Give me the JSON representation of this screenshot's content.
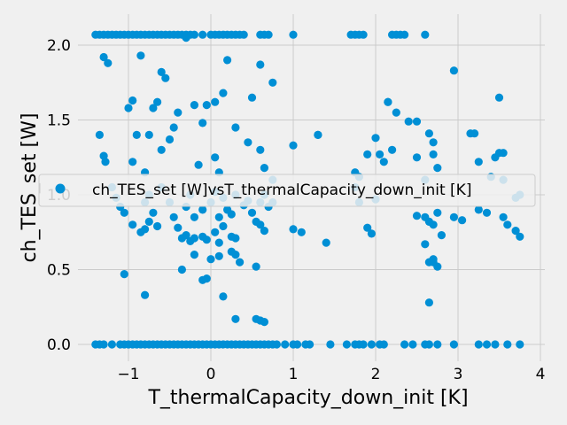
{
  "chart_data": {
    "type": "scatter",
    "xlabel": "T_thermalCapacity_down_init [K]",
    "ylabel": "ch_TES_set [W]",
    "xlim": [
      -1.55,
      3.95
    ],
    "ylim": [
      -0.1,
      2.18
    ],
    "x_ticks": [
      -1,
      0,
      1,
      2,
      3,
      4
    ],
    "x_tick_labels": [
      "−1",
      "0",
      "1",
      "2",
      "3",
      "4"
    ],
    "y_ticks": [
      0.0,
      0.5,
      1.0,
      1.5,
      2.0
    ],
    "y_tick_labels": [
      "0.0",
      "0.5",
      "1.0",
      "1.5",
      "2.0"
    ],
    "grid": true,
    "legend_position": "center",
    "marker_color": "#008fd5",
    "series": [
      {
        "name": "ch_TES_set [W]vsT_thermalCapacity_down_init [K]",
        "color": "#008fd5",
        "x": [
          -1.4,
          -1.35,
          -1.3,
          -1.25,
          -1.2,
          -1.15,
          -1.1,
          -1.05,
          -1.0,
          -0.95,
          -0.9,
          -0.85,
          -0.8,
          -0.75,
          -0.7,
          -0.65,
          -0.6,
          -0.55,
          -0.5,
          -0.45,
          -0.4,
          -0.35,
          -0.3,
          -0.25,
          -0.2,
          -0.1,
          0.0,
          0.05,
          0.1,
          0.15,
          0.2,
          0.25,
          0.3,
          0.35,
          0.4,
          0.6,
          0.65,
          0.7,
          1.0,
          1.7,
          1.75,
          1.8,
          1.85,
          2.2,
          2.25,
          2.3,
          2.35,
          2.6,
          -1.3,
          -1.25,
          -0.95,
          -0.85,
          -0.6,
          -0.55,
          -0.3,
          -0.05,
          0.05,
          0.15,
          0.2,
          0.5,
          0.6,
          0.75,
          1.3,
          2.05,
          2.15,
          2.25,
          2.5,
          2.7,
          2.95,
          3.2,
          3.25,
          3.4,
          3.45,
          3.5,
          3.55,
          3.7,
          3.75,
          -1.4,
          -1.35,
          -1.3,
          -1.2,
          -1.1,
          -1.05,
          -1.0,
          -0.95,
          -0.9,
          -0.85,
          -0.8,
          -0.75,
          -0.7,
          -0.65,
          -0.6,
          -0.55,
          -0.5,
          -0.45,
          -0.4,
          -0.35,
          -0.3,
          -0.25,
          -0.2,
          -0.15,
          -0.1,
          -0.05,
          0.0,
          0.05,
          0.1,
          0.15,
          0.2,
          0.25,
          0.3,
          0.35,
          0.4,
          0.45,
          0.5,
          0.55,
          0.6,
          0.65,
          0.7,
          0.75,
          0.8,
          0.9,
          1.0,
          1.05,
          1.15,
          1.2,
          1.45,
          1.65,
          1.75,
          1.8,
          1.85,
          1.95,
          2.05,
          2.1,
          2.35,
          2.45,
          2.6,
          2.65,
          2.75,
          2.95,
          3.25,
          3.35,
          3.45,
          3.6,
          3.75,
          -1.35,
          -1.3,
          -1.28,
          -1.0,
          -0.9,
          -0.95,
          -0.8,
          -0.75,
          -0.7,
          -0.65,
          -0.6,
          -0.5,
          -0.45,
          -0.4,
          -0.2,
          -0.15,
          -0.1,
          0.05,
          0.1,
          0.3,
          0.45,
          0.6,
          0.65,
          0.75,
          1.0,
          1.3,
          1.75,
          1.8,
          1.9,
          2.0,
          2.1,
          2.15,
          2.2,
          2.4,
          2.5,
          2.6,
          2.65,
          2.7,
          2.75,
          3.15,
          3.5,
          3.55,
          -1.2,
          -1.15,
          -1.1,
          -1.05,
          -0.95,
          -0.85,
          -0.8,
          -0.75,
          -0.7,
          -0.6,
          -0.5,
          -0.45,
          -0.4,
          -0.3,
          -0.25,
          -0.2,
          -0.1,
          0.0,
          0.05,
          0.1,
          0.15,
          0.2,
          0.25,
          0.3,
          0.4,
          0.45,
          0.5,
          0.55,
          0.6,
          0.65,
          0.7,
          0.75,
          1.8,
          1.9,
          2.0,
          1.75,
          2.5,
          2.6,
          2.65,
          2.7,
          2.75,
          2.8,
          2.95,
          3.05,
          3.25,
          3.35,
          3.55,
          3.6,
          3.7,
          3.75,
          -0.8,
          -0.75,
          -0.65,
          -0.35,
          -0.3,
          -0.25,
          -0.2,
          -0.1,
          -0.05,
          0.05,
          0.1,
          0.15,
          0.25,
          0.3,
          0.6,
          0.65,
          1.0,
          1.1,
          1.4,
          1.95,
          2.6,
          2.7,
          -0.35,
          -0.2,
          -0.1,
          0.0,
          0.1,
          0.25,
          0.3,
          0.35,
          0.55,
          2.65,
          2.7,
          2.75,
          -1.05,
          -0.8,
          -0.05,
          0.15,
          0.3,
          0.55,
          0.6,
          0.65,
          2.65
        ],
        "y": [
          2.07,
          2.07,
          2.07,
          2.07,
          2.07,
          2.07,
          2.07,
          2.07,
          2.07,
          2.07,
          2.07,
          2.07,
          2.07,
          2.07,
          2.07,
          2.07,
          2.07,
          2.07,
          2.07,
          2.07,
          2.07,
          2.07,
          2.07,
          2.07,
          2.07,
          2.07,
          2.07,
          2.07,
          2.07,
          2.07,
          2.07,
          2.07,
          2.07,
          2.07,
          2.07,
          2.07,
          2.07,
          2.07,
          2.07,
          2.07,
          2.07,
          2.07,
          2.07,
          2.07,
          2.07,
          2.07,
          2.07,
          2.07,
          1.92,
          1.88,
          1.63,
          1.93,
          1.82,
          1.78,
          2.05,
          1.6,
          1.62,
          1.68,
          1.9,
          1.65,
          1.87,
          1.75,
          1.4,
          1.27,
          1.62,
          1.55,
          1.49,
          1.35,
          1.83,
          1.41,
          1.22,
          1.12,
          1.25,
          1.65,
          1.28,
          0.98,
          1.0,
          0.0,
          0.0,
          0.0,
          0.0,
          0.0,
          0.0,
          0.0,
          0.0,
          0.0,
          0.0,
          0.0,
          0.0,
          0.0,
          0.0,
          0.0,
          0.0,
          0.0,
          0.0,
          0.0,
          0.0,
          0.0,
          0.0,
          0.0,
          0.0,
          0.0,
          0.0,
          0.0,
          0.0,
          0.0,
          0.0,
          0.0,
          0.0,
          0.0,
          0.0,
          0.0,
          0.0,
          0.0,
          0.0,
          0.0,
          0.0,
          0.0,
          0.0,
          0.0,
          0.0,
          0.0,
          0.0,
          0.0,
          0.0,
          0.0,
          0.0,
          0.0,
          0.0,
          0.0,
          0.0,
          0.0,
          0.0,
          0.0,
          0.0,
          0.0,
          0.0,
          0.0,
          0.0,
          0.0,
          0.0,
          0.0,
          0.0,
          0.0,
          1.4,
          1.26,
          1.22,
          1.58,
          1.4,
          1.22,
          1.15,
          1.4,
          1.58,
          1.62,
          1.3,
          1.37,
          1.45,
          1.55,
          1.6,
          1.2,
          1.48,
          1.25,
          1.15,
          1.45,
          1.35,
          1.3,
          1.18,
          1.1,
          1.33,
          1.4,
          1.15,
          1.12,
          1.27,
          1.38,
          1.22,
          1.62,
          1.3,
          1.49,
          1.25,
          1.1,
          1.41,
          1.27,
          1.18,
          1.41,
          1.28,
          1.1,
          1.05,
          0.98,
          0.92,
          0.88,
          0.8,
          0.75,
          0.95,
          1.0,
          0.88,
          1.05,
          0.95,
          0.85,
          0.78,
          0.92,
          1.0,
          0.85,
          0.9,
          0.95,
          1.02,
          0.85,
          0.98,
          0.9,
          0.87,
          1.0,
          0.93,
          0.96,
          0.88,
          0.82,
          0.95,
          1.0,
          0.92,
          0.95,
          0.95,
          0.78,
          0.97,
          1.05,
          0.86,
          0.85,
          0.82,
          0.8,
          0.88,
          0.73,
          0.85,
          0.83,
          0.9,
          0.88,
          0.85,
          0.8,
          0.76,
          0.72,
          0.77,
          0.82,
          0.79,
          0.71,
          0.73,
          0.69,
          0.71,
          0.72,
          0.7,
          0.75,
          0.68,
          0.79,
          0.72,
          0.71,
          0.8,
          0.76,
          0.77,
          0.75,
          0.68,
          0.74,
          0.67,
          0.57,
          0.5,
          0.6,
          0.43,
          0.57,
          0.59,
          0.62,
          0.6,
          0.55,
          0.52,
          0.55,
          0.55,
          0.52,
          0.47,
          0.33,
          0.44,
          0.32,
          0.17,
          0.17,
          0.16,
          0.15,
          0.28
        ]
      }
    ]
  }
}
